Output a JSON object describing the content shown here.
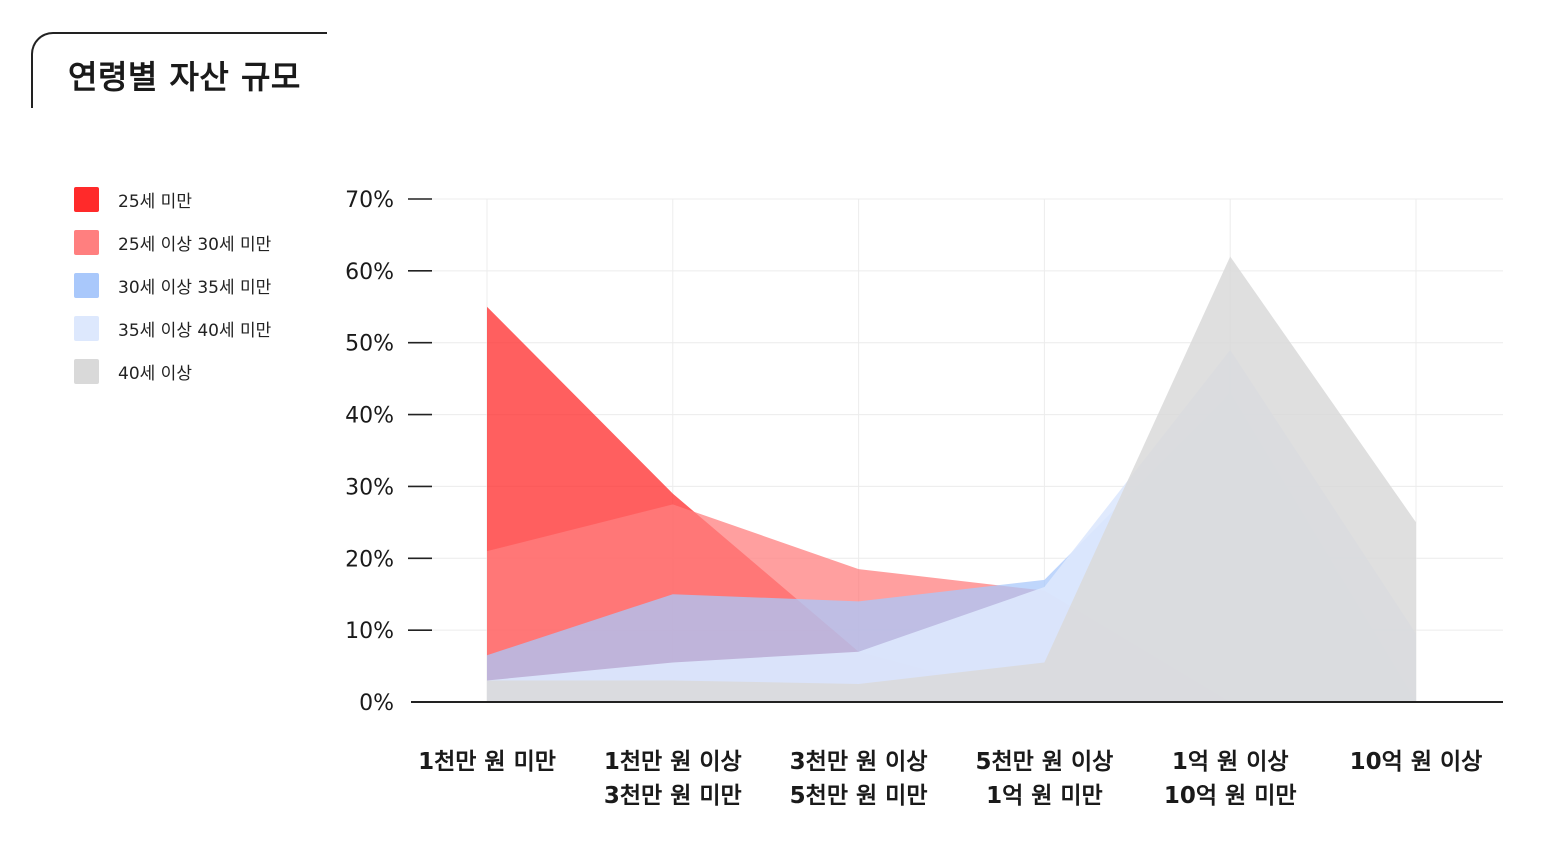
{
  "title": "연령별 자산 규모",
  "legend": [
    {
      "label": "25세 미만",
      "color": "#ff2a2a"
    },
    {
      "label": "25세 이상 30세 미만",
      "color": "#ff7f7f"
    },
    {
      "label": "30세 이상 35세 미만",
      "color": "#a9c8fb"
    },
    {
      "label": "35세 이상 40세 미만",
      "color": "#dde8fd"
    },
    {
      "label": "40세 이상",
      "color": "#d9d9d9"
    }
  ],
  "chart_data": {
    "type": "area",
    "title": "연령별 자산 규모",
    "categories": [
      [
        "1천만 원 미만"
      ],
      [
        "1천만 원 이상",
        "3천만 원 미만"
      ],
      [
        "3천만 원 이상",
        "5천만 원 미만"
      ],
      [
        "5천만 원 이상",
        "1억 원 미만"
      ],
      [
        "1억 원 이상",
        "10억 원 미만"
      ],
      [
        "10억 원 이상"
      ]
    ],
    "ylim": [
      0,
      70
    ],
    "yticks": [
      "0%",
      "10%",
      "20%",
      "30%",
      "40%",
      "50%",
      "60%",
      "70%"
    ],
    "grid": true,
    "legend_position": "left",
    "series": [
      {
        "name": "25세 미만",
        "color": "#ff2a2a",
        "opacity": 0.75,
        "values": [
          55,
          29,
          7,
          0,
          0,
          0
        ]
      },
      {
        "name": "25세 이상 30세 미만",
        "color": "#ff7f7f",
        "opacity": 0.75,
        "values": [
          21,
          27.5,
          18.5,
          15.5,
          0,
          0
        ]
      },
      {
        "name": "30세 이상 35세 미만",
        "color": "#a9c8fb",
        "opacity": 0.75,
        "values": [
          6.5,
          15,
          14,
          17,
          43,
          0
        ]
      },
      {
        "name": "35세 이상 40세 미만",
        "color": "#dde8fd",
        "opacity": 0.9,
        "values": [
          3,
          5.5,
          7,
          16,
          49,
          9.5
        ]
      },
      {
        "name": "40세 이상",
        "color": "#d9d9d9",
        "opacity": 0.85,
        "values": [
          3,
          3,
          2.5,
          5.5,
          62,
          25
        ]
      }
    ]
  }
}
